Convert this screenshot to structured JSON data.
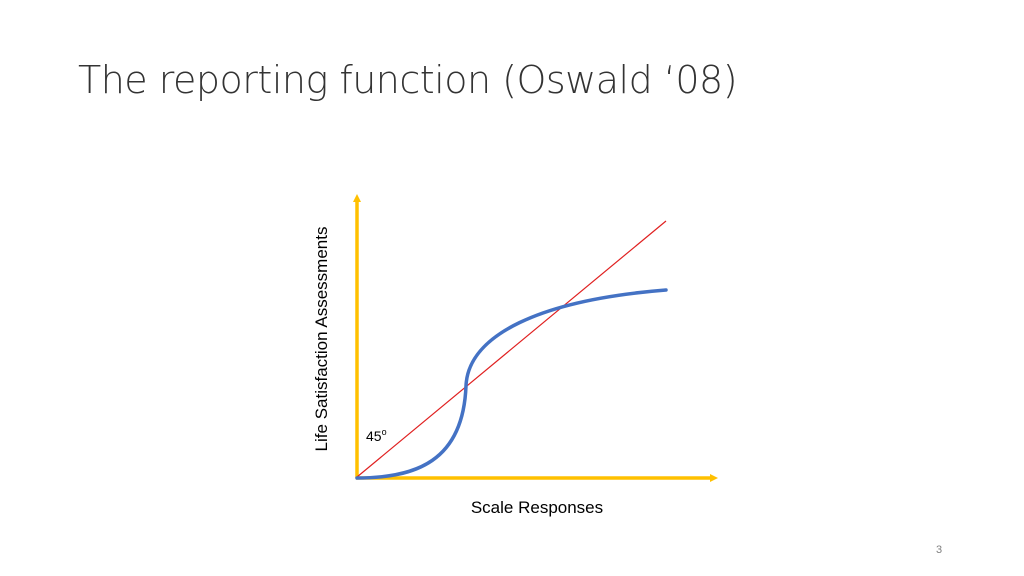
{
  "slide": {
    "title": "The reporting function (Oswald ‘08)",
    "page_number": "3"
  },
  "diagram": {
    "y_axis_label": "Life Satisfaction Assessments",
    "x_axis_label": "Scale Responses",
    "angle_label": "45",
    "angle_unit": "o",
    "colors": {
      "axes": "#FFC000",
      "reference_line": "#E02020",
      "reporting_curve": "#4472C4"
    }
  }
}
